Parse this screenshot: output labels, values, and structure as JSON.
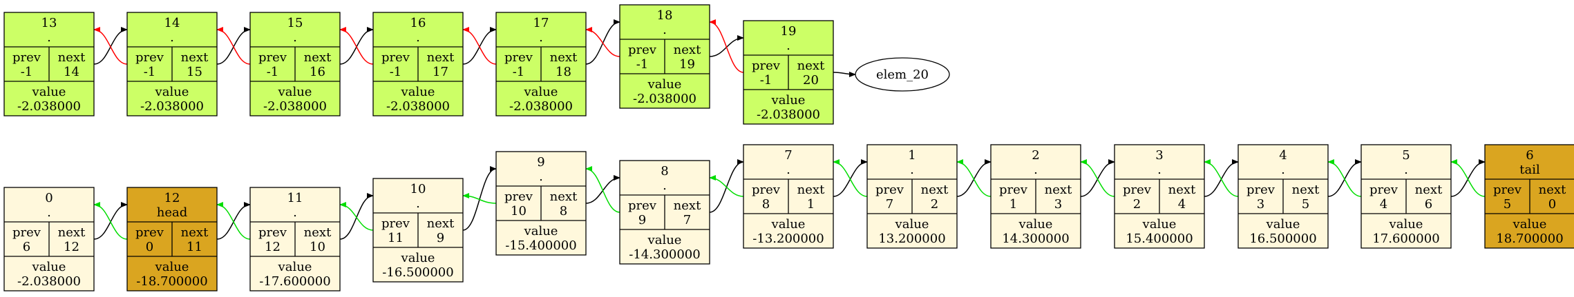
{
  "colors": {
    "free_fill": "#ccff66",
    "list_fill": "#fff8dc",
    "special_fill": "#daa520",
    "next_edge": "#000000",
    "prev_edge_free": "#ff0000",
    "prev_edge_list": "#00dd00"
  },
  "nodes": [
    {
      "id": "13",
      "label": ".",
      "prev": "-1",
      "next": "14",
      "value": "-2.038000",
      "kind": "free"
    },
    {
      "id": "14",
      "label": ".",
      "prev": "-1",
      "next": "15",
      "value": "-2.038000",
      "kind": "free"
    },
    {
      "id": "15",
      "label": ".",
      "prev": "-1",
      "next": "16",
      "value": "-2.038000",
      "kind": "free"
    },
    {
      "id": "16",
      "label": ".",
      "prev": "-1",
      "next": "17",
      "value": "-2.038000",
      "kind": "free"
    },
    {
      "id": "17",
      "label": ".",
      "prev": "-1",
      "next": "18",
      "value": "-2.038000",
      "kind": "free"
    },
    {
      "id": "18",
      "label": ".",
      "prev": "-1",
      "next": "19",
      "value": "-2.038000",
      "kind": "free"
    },
    {
      "id": "19",
      "label": ".",
      "prev": "-1",
      "next": "20",
      "value": "-2.038000",
      "kind": "free"
    },
    {
      "id": "0",
      "label": ".",
      "prev": "6",
      "next": "12",
      "value": "-2.038000",
      "kind": "list"
    },
    {
      "id": "12",
      "label": "head",
      "prev": "0",
      "next": "11",
      "value": "-18.700000",
      "kind": "special"
    },
    {
      "id": "11",
      "label": ".",
      "prev": "12",
      "next": "10",
      "value": "-17.600000",
      "kind": "list"
    },
    {
      "id": "10",
      "label": ".",
      "prev": "11",
      "next": "9",
      "value": "-16.500000",
      "kind": "list"
    },
    {
      "id": "9",
      "label": ".",
      "prev": "10",
      "next": "8",
      "value": "-15.400000",
      "kind": "list"
    },
    {
      "id": "8",
      "label": ".",
      "prev": "9",
      "next": "7",
      "value": "-14.300000",
      "kind": "list"
    },
    {
      "id": "7",
      "label": ".",
      "prev": "8",
      "next": "1",
      "value": "-13.200000",
      "kind": "list"
    },
    {
      "id": "1",
      "label": ".",
      "prev": "7",
      "next": "2",
      "value": "13.200000",
      "kind": "list"
    },
    {
      "id": "2",
      "label": ".",
      "prev": "1",
      "next": "3",
      "value": "14.300000",
      "kind": "list"
    },
    {
      "id": "3",
      "label": ".",
      "prev": "2",
      "next": "4",
      "value": "15.400000",
      "kind": "list"
    },
    {
      "id": "4",
      "label": ".",
      "prev": "3",
      "next": "5",
      "value": "16.500000",
      "kind": "list"
    },
    {
      "id": "5",
      "label": ".",
      "prev": "4",
      "next": "6",
      "value": "17.600000",
      "kind": "list"
    },
    {
      "id": "6",
      "label": "tail",
      "prev": "5",
      "next": "0",
      "value": "18.700000",
      "kind": "special"
    }
  ],
  "terminal": {
    "id": "elem_20",
    "label": "elem_20"
  },
  "field_labels": {
    "prev": "prev",
    "next": "next",
    "value": "value"
  },
  "edges": [
    {
      "from": "13",
      "to": "14",
      "type": "next"
    },
    {
      "from": "14",
      "to": "13",
      "type": "prev"
    },
    {
      "from": "14",
      "to": "15",
      "type": "next"
    },
    {
      "from": "15",
      "to": "14",
      "type": "prev"
    },
    {
      "from": "15",
      "to": "16",
      "type": "next"
    },
    {
      "from": "16",
      "to": "15",
      "type": "prev"
    },
    {
      "from": "16",
      "to": "17",
      "type": "next"
    },
    {
      "from": "17",
      "to": "16",
      "type": "prev"
    },
    {
      "from": "17",
      "to": "18",
      "type": "next"
    },
    {
      "from": "18",
      "to": "17",
      "type": "prev"
    },
    {
      "from": "18",
      "to": "19",
      "type": "next"
    },
    {
      "from": "19",
      "to": "18",
      "type": "prev"
    },
    {
      "from": "19",
      "to": "elem_20",
      "type": "next"
    },
    {
      "from": "0",
      "to": "12",
      "type": "next"
    },
    {
      "from": "12",
      "to": "0",
      "type": "prev"
    },
    {
      "from": "12",
      "to": "11",
      "type": "next"
    },
    {
      "from": "11",
      "to": "12",
      "type": "prev"
    },
    {
      "from": "11",
      "to": "10",
      "type": "next"
    },
    {
      "from": "10",
      "to": "11",
      "type": "prev"
    },
    {
      "from": "10",
      "to": "9",
      "type": "next"
    },
    {
      "from": "9",
      "to": "10",
      "type": "prev"
    },
    {
      "from": "9",
      "to": "8",
      "type": "next"
    },
    {
      "from": "8",
      "to": "9",
      "type": "prev"
    },
    {
      "from": "8",
      "to": "7",
      "type": "next"
    },
    {
      "from": "7",
      "to": "8",
      "type": "prev"
    },
    {
      "from": "7",
      "to": "1",
      "type": "next"
    },
    {
      "from": "1",
      "to": "7",
      "type": "prev"
    },
    {
      "from": "1",
      "to": "2",
      "type": "next"
    },
    {
      "from": "2",
      "to": "1",
      "type": "prev"
    },
    {
      "from": "2",
      "to": "3",
      "type": "next"
    },
    {
      "from": "3",
      "to": "2",
      "type": "prev"
    },
    {
      "from": "3",
      "to": "4",
      "type": "next"
    },
    {
      "from": "4",
      "to": "3",
      "type": "prev"
    },
    {
      "from": "4",
      "to": "5",
      "type": "next"
    },
    {
      "from": "5",
      "to": "4",
      "type": "prev"
    },
    {
      "from": "5",
      "to": "6",
      "type": "next"
    },
    {
      "from": "6",
      "to": "5",
      "type": "prev"
    }
  ]
}
